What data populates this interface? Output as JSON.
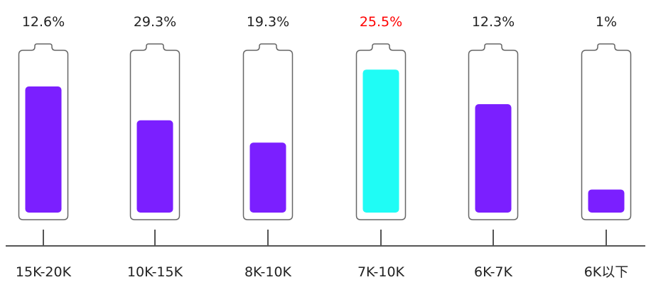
{
  "chart_data": {
    "type": "bar",
    "title": "",
    "xlabel": "",
    "ylabel": "",
    "categories": [
      "15K-20K",
      "10K-15K",
      "8K-10K",
      "7K-10K",
      "6K-7K",
      "6K以下"
    ],
    "values": [
      12.6,
      29.3,
      19.3,
      25.5,
      12.3,
      1
    ],
    "value_labels": [
      "12.6%",
      "29.3%",
      "19.3%",
      "25.5%",
      "12.3%",
      "1%"
    ],
    "bar_fill_fraction": [
      0.82,
      0.6,
      0.455,
      0.93,
      0.705,
      0.15
    ],
    "highlight_index": 3,
    "colors": {
      "bar": "#7b1fff",
      "highlight_bar": "#1ffcf5",
      "highlight_label": "#ff0000",
      "label": "#222222",
      "outline": "#666666",
      "axis": "#555555"
    }
  }
}
